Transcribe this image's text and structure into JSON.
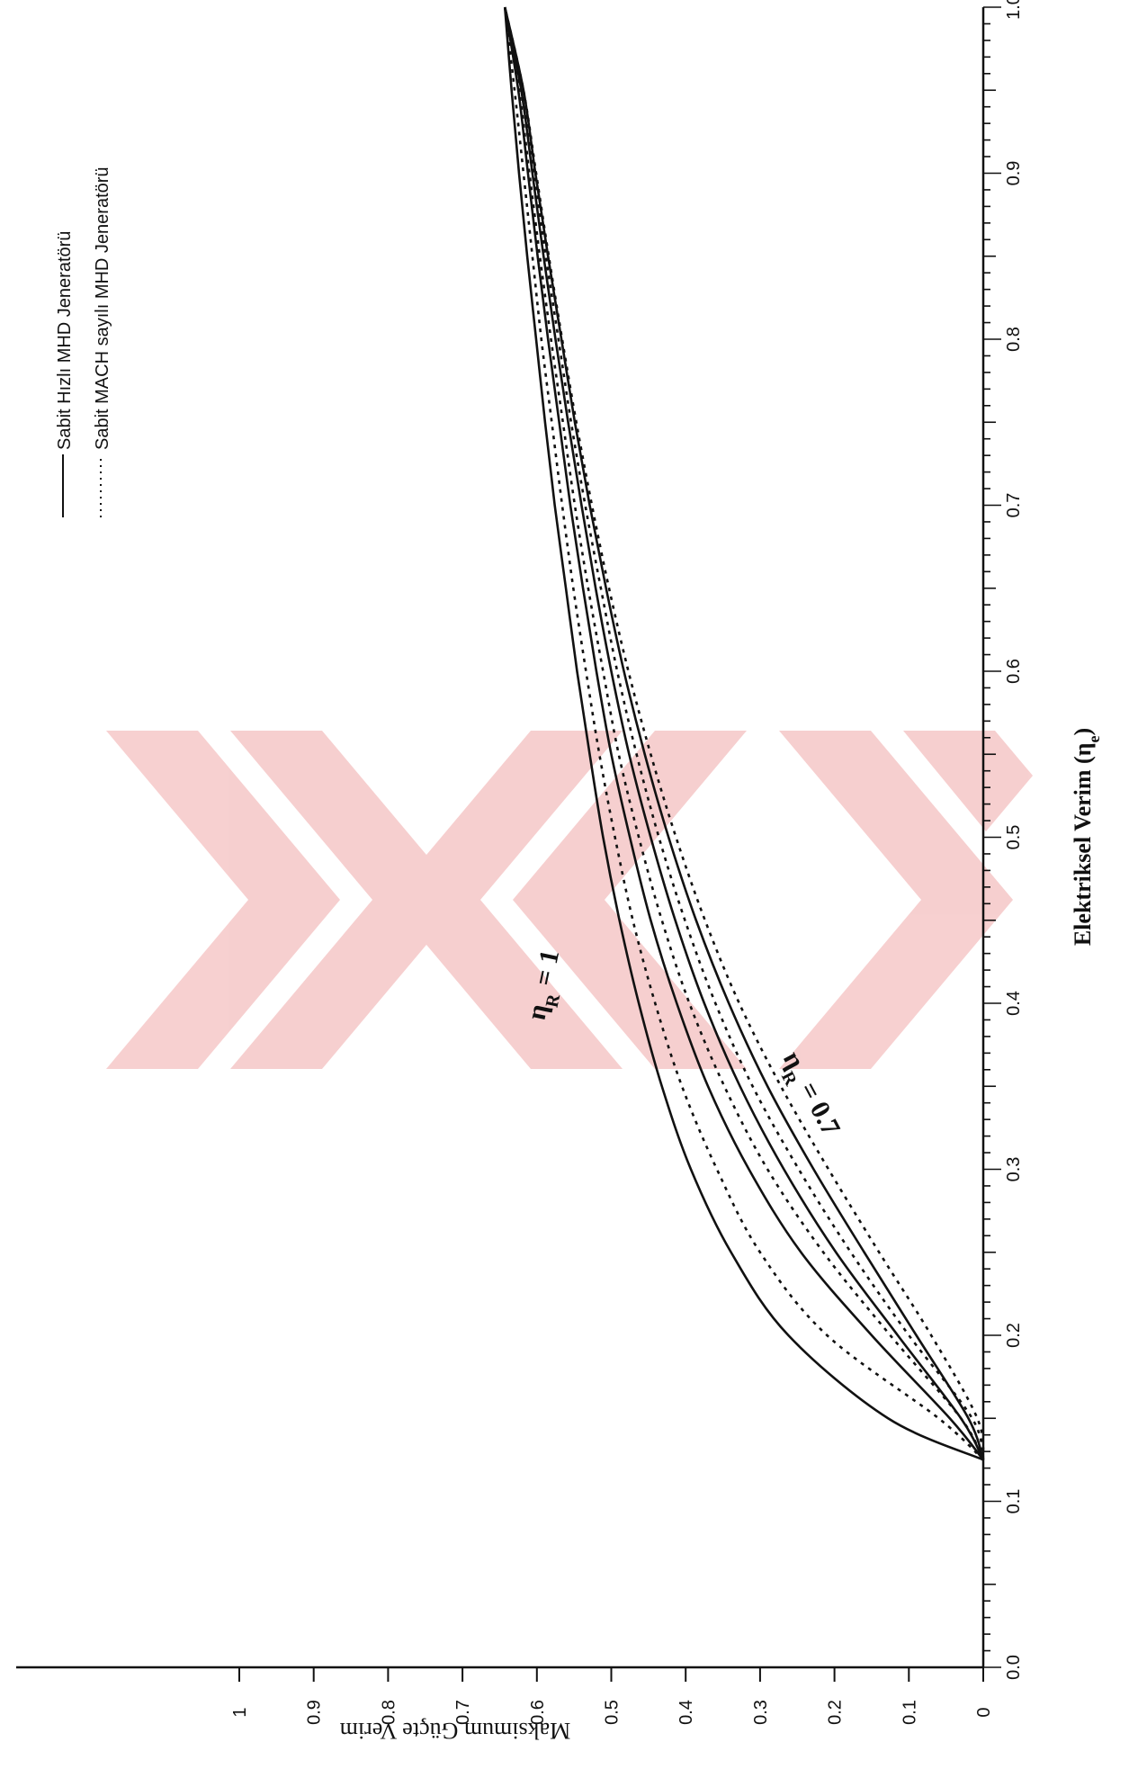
{
  "chart_data": {
    "type": "line",
    "xlabel": "Elektriksel Verim (η",
    "xlabel_sub": "e",
    "xlabel_end": ")",
    "ylabel": "Maksimum  Güçte Verim",
    "xlim": [
      0.0,
      1.0
    ],
    "ylim": [
      0,
      1
    ],
    "x_ticks": [
      "0.0",
      "0.1",
      "0.2",
      "0.3",
      "0.4",
      "0.5",
      "0.6",
      "0.7",
      "0.8",
      "0.9",
      "1.0"
    ],
    "y_ticks": [
      "0",
      "0.1",
      "0.2",
      "0.3",
      "0.4",
      "0.5",
      "0.6",
      "0.7",
      "0.8",
      "0.9",
      "1"
    ],
    "orientation": "rotated 90° clockwise (x axis runs vertically on the right, y axis runs horizontally at the bottom)",
    "legend": {
      "placement": "top-left",
      "entries": [
        {
          "label": "Sabit Hızlı MHD Jeneratörü",
          "style": "solid"
        },
        {
          "label": "Sabit MACH sayılı MHD Jeneratörü",
          "style": "dotted"
        }
      ]
    },
    "annotations": [
      {
        "text": "η",
        "sub": "R",
        "rest": " = 1"
      },
      {
        "text": "η",
        "sub": "R",
        "rest": " = 0.7"
      }
    ],
    "series": [
      {
        "style": "solid",
        "points": [
          [
            0.125,
            0
          ],
          [
            0.15,
            0.128
          ],
          [
            0.2,
            0.262
          ],
          [
            0.25,
            0.339
          ],
          [
            0.3,
            0.393
          ],
          [
            0.35,
            0.432
          ],
          [
            0.4,
            0.463
          ],
          [
            0.45,
            0.489
          ],
          [
            0.5,
            0.511
          ],
          [
            0.55,
            0.529
          ],
          [
            0.6,
            0.546
          ],
          [
            0.65,
            0.561
          ],
          [
            0.7,
            0.576
          ],
          [
            0.75,
            0.589
          ],
          [
            0.8,
            0.601
          ],
          [
            0.85,
            0.613
          ],
          [
            0.9,
            0.624
          ],
          [
            0.95,
            0.634
          ],
          [
            1.0,
            0.643
          ]
        ]
      },
      {
        "style": "dotted",
        "points": [
          [
            0.125,
            0
          ],
          [
            0.15,
            0.06
          ],
          [
            0.2,
            0.21
          ],
          [
            0.25,
            0.3
          ],
          [
            0.3,
            0.358
          ],
          [
            0.35,
            0.405
          ],
          [
            0.4,
            0.441
          ],
          [
            0.45,
            0.471
          ],
          [
            0.5,
            0.495
          ],
          [
            0.55,
            0.516
          ],
          [
            0.6,
            0.534
          ],
          [
            0.65,
            0.551
          ],
          [
            0.7,
            0.566
          ],
          [
            0.75,
            0.58
          ],
          [
            0.8,
            0.594
          ],
          [
            0.85,
            0.606
          ],
          [
            0.9,
            0.618
          ],
          [
            0.95,
            0.63
          ],
          [
            1.0,
            0.643
          ]
        ]
      },
      {
        "style": "solid",
        "points": [
          [
            0.125,
            0
          ],
          [
            0.15,
            0.045
          ],
          [
            0.2,
            0.15
          ],
          [
            0.25,
            0.245
          ],
          [
            0.3,
            0.315
          ],
          [
            0.35,
            0.37
          ],
          [
            0.4,
            0.412
          ],
          [
            0.45,
            0.447
          ],
          [
            0.5,
            0.475
          ],
          [
            0.55,
            0.5
          ],
          [
            0.6,
            0.52
          ],
          [
            0.65,
            0.538
          ],
          [
            0.7,
            0.555
          ],
          [
            0.75,
            0.57
          ],
          [
            0.8,
            0.585
          ],
          [
            0.85,
            0.599
          ],
          [
            0.9,
            0.612
          ],
          [
            0.95,
            0.625
          ],
          [
            1.0,
            0.643
          ]
        ]
      },
      {
        "style": "dotted",
        "points": [
          [
            0.125,
            0
          ],
          [
            0.15,
            0.03
          ],
          [
            0.2,
            0.125
          ],
          [
            0.25,
            0.215
          ],
          [
            0.3,
            0.29
          ],
          [
            0.35,
            0.348
          ],
          [
            0.4,
            0.395
          ],
          [
            0.45,
            0.432
          ],
          [
            0.5,
            0.463
          ],
          [
            0.55,
            0.49
          ],
          [
            0.6,
            0.511
          ],
          [
            0.65,
            0.531
          ],
          [
            0.7,
            0.549
          ],
          [
            0.75,
            0.565
          ],
          [
            0.8,
            0.581
          ],
          [
            0.85,
            0.596
          ],
          [
            0.9,
            0.61
          ],
          [
            0.95,
            0.624
          ],
          [
            1.0,
            0.643
          ]
        ]
      },
      {
        "style": "solid",
        "points": [
          [
            0.125,
            0
          ],
          [
            0.15,
            0.03
          ],
          [
            0.2,
            0.115
          ],
          [
            0.25,
            0.198
          ],
          [
            0.3,
            0.268
          ],
          [
            0.35,
            0.327
          ],
          [
            0.4,
            0.375
          ],
          [
            0.45,
            0.414
          ],
          [
            0.5,
            0.447
          ],
          [
            0.55,
            0.476
          ],
          [
            0.6,
            0.5
          ],
          [
            0.65,
            0.521
          ],
          [
            0.7,
            0.54
          ],
          [
            0.75,
            0.558
          ],
          [
            0.8,
            0.575
          ],
          [
            0.85,
            0.591
          ],
          [
            0.9,
            0.606
          ],
          [
            0.95,
            0.621
          ],
          [
            1.0,
            0.643
          ]
        ]
      },
      {
        "style": "dotted",
        "points": [
          [
            0.125,
            0
          ],
          [
            0.15,
            0.015
          ],
          [
            0.2,
            0.1
          ],
          [
            0.25,
            0.178
          ],
          [
            0.3,
            0.248
          ],
          [
            0.35,
            0.31
          ],
          [
            0.4,
            0.36
          ],
          [
            0.45,
            0.401
          ],
          [
            0.5,
            0.436
          ],
          [
            0.55,
            0.466
          ],
          [
            0.6,
            0.492
          ],
          [
            0.65,
            0.514
          ],
          [
            0.7,
            0.535
          ],
          [
            0.75,
            0.554
          ],
          [
            0.8,
            0.571
          ],
          [
            0.85,
            0.588
          ],
          [
            0.9,
            0.604
          ],
          [
            0.95,
            0.62
          ],
          [
            1.0,
            0.643
          ]
        ]
      },
      {
        "style": "solid",
        "points": [
          [
            0.125,
            0
          ],
          [
            0.15,
            0.02
          ],
          [
            0.2,
            0.09
          ],
          [
            0.25,
            0.16
          ],
          [
            0.3,
            0.228
          ],
          [
            0.35,
            0.29
          ],
          [
            0.4,
            0.342
          ],
          [
            0.45,
            0.386
          ],
          [
            0.5,
            0.423
          ],
          [
            0.55,
            0.455
          ],
          [
            0.6,
            0.483
          ],
          [
            0.65,
            0.507
          ],
          [
            0.7,
            0.529
          ],
          [
            0.75,
            0.549
          ],
          [
            0.8,
            0.567
          ],
          [
            0.85,
            0.585
          ],
          [
            0.9,
            0.602
          ],
          [
            0.95,
            0.618
          ],
          [
            1.0,
            0.643
          ]
        ]
      },
      {
        "style": "dotted",
        "points": [
          [
            0.125,
            0
          ],
          [
            0.15,
            0.008
          ],
          [
            0.2,
            0.07
          ],
          [
            0.25,
            0.14
          ],
          [
            0.3,
            0.208
          ],
          [
            0.35,
            0.272
          ],
          [
            0.4,
            0.328
          ],
          [
            0.45,
            0.374
          ],
          [
            0.5,
            0.413
          ],
          [
            0.55,
            0.447
          ],
          [
            0.6,
            0.477
          ],
          [
            0.65,
            0.503
          ],
          [
            0.7,
            0.526
          ],
          [
            0.75,
            0.547
          ],
          [
            0.8,
            0.566
          ],
          [
            0.85,
            0.584
          ],
          [
            0.9,
            0.601
          ],
          [
            0.95,
            0.618
          ],
          [
            1.0,
            0.643
          ]
        ]
      }
    ],
    "colors": {
      "line": "#111111",
      "watermark": "#f2b3b3"
    }
  }
}
